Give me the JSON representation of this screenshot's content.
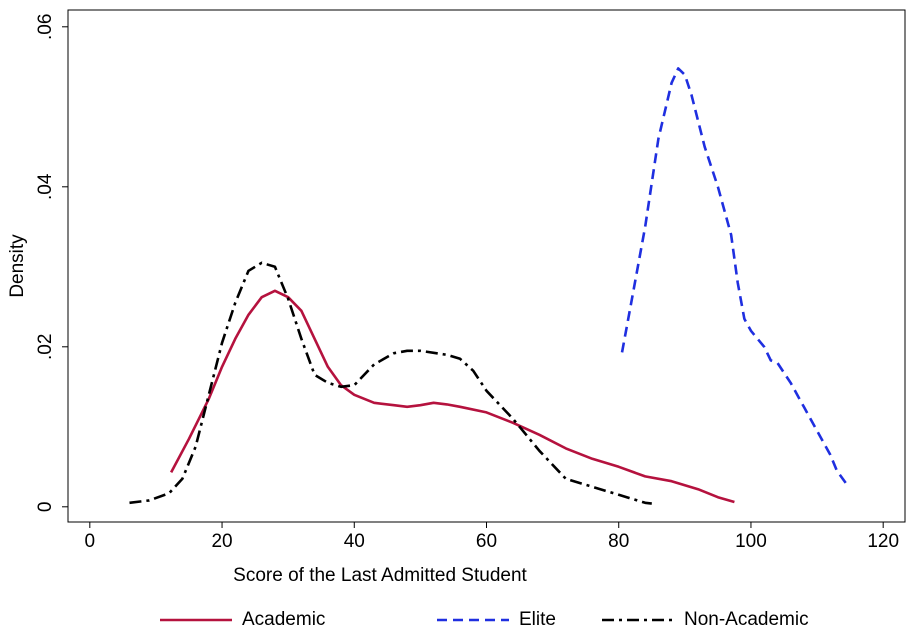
{
  "chart_data": {
    "type": "line",
    "xlabel": "Score of the Last Admitted Student",
    "ylabel": "Density",
    "xlim": [
      -3.3,
      123.3
    ],
    "ylim": [
      -0.0019,
      0.0621
    ],
    "xticks": [
      0,
      20,
      40,
      60,
      80,
      100,
      120
    ],
    "yticks": [
      0,
      {
        "value": 0.02,
        "label": ".02"
      },
      {
        "value": 0.04,
        "label": ".04"
      },
      {
        "value": 0.06,
        "label": ".06"
      }
    ],
    "grid": false,
    "legend": "bottom",
    "series": [
      {
        "name": "Academic",
        "color": "#b5123e",
        "linestyle": "solid",
        "x": [
          12.3,
          15,
          18,
          20,
          22,
          24,
          26,
          28,
          30,
          32,
          34,
          36,
          38,
          40,
          43,
          46,
          48,
          50,
          52,
          54,
          56,
          60,
          64,
          68,
          72,
          76,
          80,
          84,
          88,
          92,
          95,
          97.5
        ],
        "values": [
          0.0043,
          0.0085,
          0.0135,
          0.0175,
          0.021,
          0.024,
          0.0262,
          0.027,
          0.0262,
          0.0245,
          0.021,
          0.0175,
          0.0152,
          0.014,
          0.013,
          0.0127,
          0.0125,
          0.0127,
          0.013,
          0.0128,
          0.0125,
          0.0118,
          0.0105,
          0.009,
          0.0073,
          0.006,
          0.005,
          0.0038,
          0.0032,
          0.0022,
          0.0012,
          0.0006
        ]
      },
      {
        "name": "Elite",
        "color": "#1f2fe0",
        "linestyle": "dashed",
        "x": [
          80.5,
          82,
          84,
          86,
          88,
          89,
          90,
          91,
          93,
          95,
          97,
          98,
          99,
          100,
          102,
          103,
          104,
          106,
          108,
          110,
          112,
          113,
          114.5
        ],
        "values": [
          0.0193,
          0.026,
          0.035,
          0.046,
          0.053,
          0.0548,
          0.054,
          0.0515,
          0.045,
          0.04,
          0.034,
          0.028,
          0.0235,
          0.022,
          0.02,
          0.0183,
          0.018,
          0.0155,
          0.0125,
          0.0095,
          0.0065,
          0.0045,
          0.0028
        ]
      },
      {
        "name": "Non-Academic",
        "color": "#000000",
        "linestyle": "dashdot",
        "x": [
          6,
          9,
          12,
          14,
          16,
          18,
          20,
          22,
          24,
          26,
          28,
          30,
          32,
          34,
          36,
          38,
          40,
          43,
          46,
          48,
          50,
          54,
          56,
          58,
          60,
          64,
          68,
          72,
          76,
          80,
          84,
          85
        ],
        "values": [
          0.0005,
          0.0008,
          0.0017,
          0.0035,
          0.0075,
          0.014,
          0.0205,
          0.0255,
          0.0295,
          0.0305,
          0.03,
          0.026,
          0.021,
          0.0165,
          0.0155,
          0.015,
          0.0152,
          0.0178,
          0.0192,
          0.0195,
          0.0195,
          0.019,
          0.0185,
          0.017,
          0.0145,
          0.011,
          0.007,
          0.0035,
          0.0025,
          0.0015,
          0.0005,
          0.0004
        ]
      }
    ]
  }
}
